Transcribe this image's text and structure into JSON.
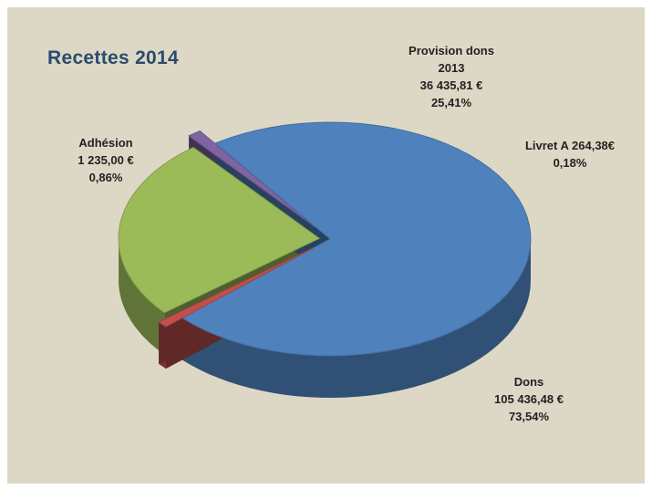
{
  "chart_data": {
    "type": "pie",
    "title": "Recettes  2014",
    "slices": [
      {
        "name": "Dons",
        "amount": "105 436,48 €",
        "value": 105436.48,
        "percent": "73,54%",
        "color": "#4f81bd"
      },
      {
        "name": "Adhésion",
        "amount": "1 235,00 €",
        "value": 1235.0,
        "percent": "0,86%",
        "color": "#c0504d"
      },
      {
        "name": "Provision dons 2013",
        "amount": "36 435,81 €",
        "value": 36435.81,
        "percent": "25,41%",
        "color": "#9bbb59"
      },
      {
        "name": "Livret A  264,38€",
        "value": 264.38,
        "percent": "0,18%",
        "color": "#8064a2"
      }
    ],
    "labels": {
      "provision_line1": "Provision dons",
      "provision_line2": "2013",
      "livret_line1": "Livret A  264,38€"
    },
    "legend": "none"
  }
}
